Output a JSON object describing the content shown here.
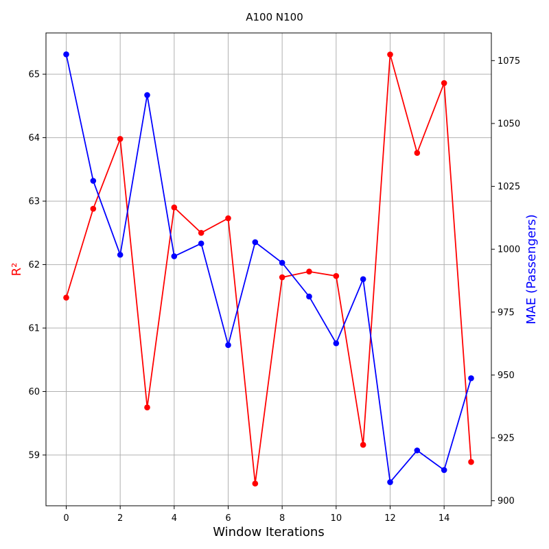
{
  "chart_data": {
    "type": "line",
    "title": "A100 N100",
    "xlabel": "Window Iterations",
    "x": [
      0,
      1,
      2,
      3,
      4,
      5,
      6,
      7,
      8,
      9,
      10,
      11,
      12,
      13,
      14,
      15
    ],
    "xlim": [
      -0.75,
      15.75
    ],
    "x_ticks": [
      0,
      2,
      4,
      6,
      8,
      10,
      12,
      14
    ],
    "grid": true,
    "left_axis": {
      "label": "R²",
      "color": "#ff0000",
      "ylim": [
        58.2,
        65.65
      ],
      "ticks": [
        59,
        60,
        61,
        62,
        63,
        64,
        65
      ]
    },
    "right_axis": {
      "label": "MAE (Passengers)",
      "color": "#0000ff",
      "ylim": [
        898,
        1086
      ],
      "ticks": [
        900,
        925,
        950,
        975,
        1000,
        1025,
        1050,
        1075
      ]
    },
    "series": [
      {
        "axis": "left",
        "color": "#ff0000",
        "marker": "circle",
        "values": [
          61.48,
          62.88,
          63.98,
          59.75,
          62.9,
          62.5,
          62.73,
          58.55,
          61.8,
          61.89,
          61.82,
          59.16,
          65.31,
          63.76,
          64.86,
          58.89
        ]
      },
      {
        "axis": "right",
        "color": "#0000ff",
        "marker": "circle",
        "values": [
          1077.5,
          1027.2,
          997.8,
          1061.3,
          997.2,
          1002.3,
          961.9,
          1002.8,
          994.6,
          981.2,
          962.6,
          988.1,
          907.4,
          920.0,
          912.2,
          948.7
        ]
      }
    ]
  }
}
